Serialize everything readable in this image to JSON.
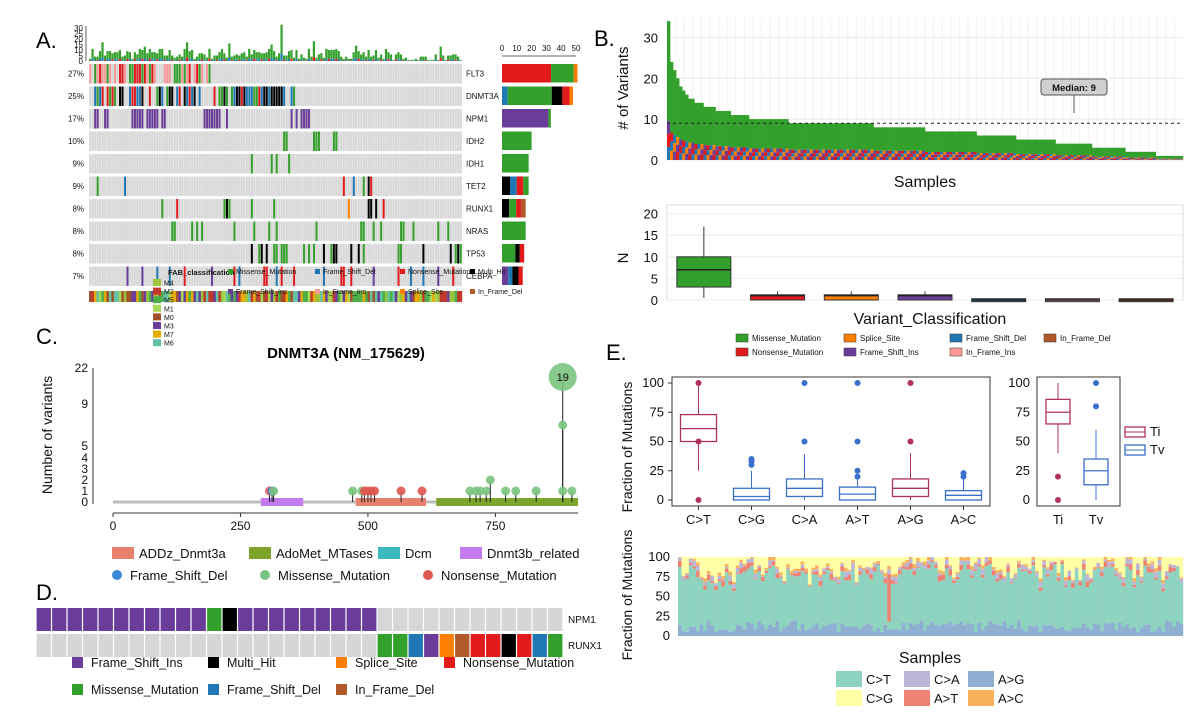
{
  "panel_labels": {
    "a": "A.",
    "b": "B.",
    "c": "C.",
    "d": "D.",
    "e": "E."
  },
  "colors": {
    "Missense_Mutation": "#33A02C",
    "Frame_Shift_Del": "#1F78B4",
    "Nonsense_Mutation": "#E31A1C",
    "Multi_Hit": "#000000",
    "Frame_Shift_Ins": "#6A3D9A",
    "In_Frame_Ins": "#FB9A99",
    "Splice_Site": "#FF7F00",
    "In_Frame_Del": "#B15928",
    "ADDz_Dnmt3a": "#E8806E",
    "AdoMet_MTases": "#7EA52B",
    "Dcm": "#3CB8BE",
    "Dnmt3b_related": "#C27CF0",
    "C>T": "#8ED2C0",
    "C>G": "#FFFFA8",
    "C>A": "#BDB6D8",
    "A>T": "#EE8373",
    "A>G": "#8EAFD2",
    "A>C": "#F8B25C",
    "Ti": "#B03060",
    "Tv": "#3A70CC"
  },
  "panelA": {
    "genes": [
      "FLT3",
      "DNMT3A",
      "NPM1",
      "IDH2",
      "IDH1",
      "TET2",
      "RUNX1",
      "NRAS",
      "TP53",
      "CEBPA"
    ],
    "percents": [
      "27%",
      "25%",
      "17%",
      "10%",
      "9%",
      "9%",
      "8%",
      "8%",
      "8%",
      "7%"
    ],
    "top_axis_ticks": [
      "0",
      "5",
      "10",
      "15",
      "20",
      "25",
      "30"
    ],
    "side_axis_ticks": [
      "0",
      "10",
      "20",
      "30",
      "40",
      "50"
    ],
    "gene_counts": [
      51,
      48,
      33,
      20,
      18,
      18,
      16,
      16,
      15,
      14
    ],
    "legend_title": "FAB_classification",
    "fab_classes": [
      {
        "name": "M4",
        "color": "#9BC53D"
      },
      {
        "name": "M2",
        "color": "#C0392B"
      },
      {
        "name": "M5",
        "color": "#4DAF4A"
      },
      {
        "name": "M1",
        "color": "#A6D854"
      },
      {
        "name": "M0",
        "color": "#A0522D"
      },
      {
        "name": "M3",
        "color": "#6A3D9A"
      },
      {
        "name": "M7",
        "color": "#E6AB02"
      },
      {
        "name": "M6",
        "color": "#66C2A5"
      }
    ],
    "legend_items": [
      "Missense_Mutation",
      "Frame_Shift_Del",
      "Nonsense_Mutation",
      "Multi_Hit",
      "Frame_Shift_Ins",
      "In_Frame_Ins",
      "Splice_Site",
      "In_Frame_Del"
    ]
  },
  "panelB": {
    "ylabel_top": "# of Variants",
    "xlabel_top": "Samples",
    "yticks_top": [
      "0",
      "10",
      "20",
      "30"
    ],
    "median_label": "Median: 9",
    "ylabel_bottom": "N",
    "xlabel_bottom": "Variant_Classification",
    "yticks_bottom": [
      "0",
      "5",
      "10",
      "15",
      "20"
    ],
    "legend_items": [
      "Missense_Mutation",
      "Splice_Site",
      "Frame_Shift_Del",
      "In_Frame_Del",
      "Nonsense_Mutation",
      "Frame_Shift_Ins",
      "In_Frame_Ins"
    ]
  },
  "panelC": {
    "title": "DNMT3A (NM_175629)",
    "ylabel": "Number of variants",
    "yticks": [
      "0",
      "1",
      "2",
      "3",
      "4",
      "5",
      "9",
      "22"
    ],
    "xticks": [
      "0",
      "250",
      "500",
      "750"
    ],
    "hotspot_label": "19",
    "domain_legend": [
      "ADDz_Dnmt3a",
      "AdoMet_MTases",
      "Dcm",
      "Dnmt3b_related"
    ],
    "mutation_legend": [
      "Frame_Shift_Del",
      "Missense_Mutation",
      "Nonsense_Mutation"
    ]
  },
  "panelD": {
    "genes": [
      "NPM1",
      "RUNX1"
    ],
    "legend_items": [
      "Frame_Shift_Ins",
      "Multi_Hit",
      "Splice_Site",
      "Nonsense_Mutation",
      "Missense_Mutation",
      "Frame_Shift_Del",
      "In_Frame_Del"
    ]
  },
  "panelE": {
    "ylabel": "Fraction of Mutations",
    "yticks": [
      "0",
      "25",
      "50",
      "75",
      "100"
    ],
    "categories": [
      "C>T",
      "C>G",
      "C>A",
      "A>T",
      "A>G",
      "A>C"
    ],
    "titv_categories": [
      "Ti",
      "Tv"
    ],
    "titv_legend": [
      "Ti",
      "Tv"
    ],
    "bottom_ylabel": "Fraction of Mutations",
    "bottom_xlabel": "Samples",
    "bottom_legend": [
      "C>T",
      "C>A",
      "A>G",
      "C>G",
      "A>T",
      "A>C"
    ]
  },
  "chart_data": [
    {
      "type": "bar",
      "panel": "A",
      "title": "",
      "series_name": "Gene mutation counts (side bars)",
      "categories": [
        "FLT3",
        "DNMT3A",
        "NPM1",
        "IDH2",
        "IDH1",
        "TET2",
        "RUNX1",
        "NRAS",
        "TP53",
        "CEBPA"
      ],
      "values": [
        51,
        48,
        33,
        20,
        18,
        18,
        16,
        16,
        15,
        14
      ],
      "percent_labels": [
        "27%",
        "25%",
        "17%",
        "10%",
        "9%",
        "9%",
        "8%",
        "8%",
        "8%",
        "7%"
      ],
      "xlim": [
        0,
        50
      ]
    },
    {
      "type": "bar",
      "panel": "B-top",
      "xlabel": "Samples",
      "ylabel": "# of Variants",
      "ylim": [
        0,
        35
      ],
      "median": 9,
      "values": [
        34,
        24,
        22,
        20,
        18,
        17,
        16,
        15,
        15,
        14,
        14,
        14,
        13,
        13,
        13,
        13,
        12,
        12,
        12,
        12,
        12,
        11,
        11,
        11,
        11,
        11,
        11,
        10,
        10,
        10,
        10,
        10,
        10,
        10,
        10,
        10,
        10,
        10,
        10,
        10,
        9,
        9,
        9,
        9,
        9,
        9,
        9,
        9,
        9,
        9,
        9,
        9,
        9,
        9,
        9,
        9,
        9,
        9,
        9,
        9,
        9,
        9,
        9,
        9,
        9,
        9,
        9,
        9,
        8,
        8,
        8,
        8,
        8,
        8,
        8,
        8,
        8,
        8,
        8,
        8,
        8,
        8,
        8,
        8,
        8,
        7,
        7,
        7,
        7,
        7,
        7,
        7,
        7,
        7,
        7,
        7,
        7,
        7,
        7,
        7,
        7,
        7,
        6,
        6,
        6,
        6,
        6,
        6,
        6,
        6,
        6,
        6,
        6,
        6,
        6,
        5,
        5,
        5,
        5,
        5,
        5,
        5,
        5,
        5,
        5,
        5,
        5,
        5,
        4,
        4,
        4,
        4,
        4,
        4,
        4,
        4,
        4,
        4,
        4,
        4,
        3,
        3,
        3,
        3,
        3,
        3,
        3,
        3,
        3,
        3,
        3,
        2,
        2,
        2,
        2,
        2,
        2,
        2,
        2,
        2,
        2,
        1,
        1,
        1,
        1,
        1,
        1,
        1,
        1,
        1
      ]
    },
    {
      "type": "box",
      "panel": "B-bottom",
      "xlabel": "Variant_Classification",
      "ylabel": "N",
      "ylim": [
        0,
        22
      ],
      "categories": [
        "Missense_Mutation",
        "Nonsense_Mutation",
        "Splice_Site",
        "Frame_Shift_Ins",
        "Frame_Shift_Del",
        "In_Frame_Ins",
        "In_Frame_Del"
      ],
      "boxes": [
        {
          "q1": 3,
          "median": 7,
          "q3": 10,
          "min": 0.5,
          "max": 17
        },
        {
          "q1": 0,
          "median": 1,
          "q3": 1.2,
          "min": 0,
          "max": 2
        },
        {
          "q1": 0,
          "median": 1,
          "q3": 1.2,
          "min": 0,
          "max": 2
        },
        {
          "q1": 0,
          "median": 1,
          "q3": 1.2,
          "min": 0,
          "max": 2
        },
        {
          "q1": 0,
          "median": 0,
          "q3": 0.3,
          "min": 0,
          "max": 0.3
        },
        {
          "q1": 0,
          "median": 0,
          "q3": 0.3,
          "min": 0,
          "max": 0.3
        },
        {
          "q1": 0,
          "median": 0,
          "q3": 0.3,
          "min": 0,
          "max": 0.3
        }
      ]
    },
    {
      "type": "scatter",
      "panel": "C",
      "title": "DNMT3A (NM_175629)",
      "xlabel": "",
      "ylabel": "Number of variants",
      "xlim": [
        0,
        912
      ],
      "lollipops": [
        {
          "x": 307,
          "y": 1,
          "class": "Nonsense_Mutation"
        },
        {
          "x": 312,
          "y": 1,
          "class": "Frame_Shift_Del"
        },
        {
          "x": 315,
          "y": 1,
          "class": "Missense_Mutation"
        },
        {
          "x": 470,
          "y": 1,
          "class": "Missense_Mutation"
        },
        {
          "x": 488,
          "y": 1,
          "class": "Missense_Mutation"
        },
        {
          "x": 493,
          "y": 1,
          "class": "Nonsense_Mutation"
        },
        {
          "x": 500,
          "y": 1,
          "class": "Nonsense_Mutation"
        },
        {
          "x": 506,
          "y": 1,
          "class": "Nonsense_Mutation"
        },
        {
          "x": 513,
          "y": 1,
          "class": "Nonsense_Mutation"
        },
        {
          "x": 565,
          "y": 1,
          "class": "Nonsense_Mutation"
        },
        {
          "x": 606,
          "y": 1,
          "class": "Nonsense_Mutation"
        },
        {
          "x": 700,
          "y": 1,
          "class": "Missense_Mutation"
        },
        {
          "x": 712,
          "y": 1,
          "class": "Missense_Mutation"
        },
        {
          "x": 720,
          "y": 1,
          "class": "Missense_Mutation"
        },
        {
          "x": 732,
          "y": 1,
          "class": "Missense_Mutation"
        },
        {
          "x": 740,
          "y": 2,
          "class": "Missense_Mutation"
        },
        {
          "x": 770,
          "y": 1,
          "class": "Missense_Mutation"
        },
        {
          "x": 790,
          "y": 1,
          "class": "Missense_Mutation"
        },
        {
          "x": 830,
          "y": 1,
          "class": "Missense_Mutation"
        },
        {
          "x": 882,
          "y": 19,
          "class": "Missense_Mutation"
        },
        {
          "x": 882,
          "y": 7,
          "class": "Missense_Mutation"
        },
        {
          "x": 882,
          "y": 1,
          "class": "Missense_Mutation"
        },
        {
          "x": 900,
          "y": 1,
          "class": "Missense_Mutation"
        }
      ]
    },
    {
      "type": "box",
      "panel": "E-titv",
      "ylabel": "Fraction of Mutations",
      "ylim": [
        0,
        100
      ],
      "categories": [
        "C>T",
        "C>G",
        "C>A",
        "A>T",
        "A>G",
        "A>C"
      ],
      "boxes": [
        {
          "q1": 50,
          "median": 61,
          "q3": 73,
          "min": 25,
          "max": 100
        },
        {
          "q1": 0,
          "median": 3,
          "q3": 10,
          "min": 0,
          "max": 25
        },
        {
          "q1": 3,
          "median": 10,
          "q3": 18,
          "min": 0,
          "max": 39
        },
        {
          "q1": 0,
          "median": 5,
          "q3": 11,
          "min": 0,
          "max": 22
        },
        {
          "q1": 3,
          "median": 10,
          "q3": 18,
          "min": 0,
          "max": 40
        },
        {
          "q1": 0,
          "median": 4,
          "q3": 8,
          "min": 0,
          "max": 18
        }
      ]
    },
    {
      "type": "box",
      "panel": "E-titv-summary",
      "ylim": [
        0,
        100
      ],
      "categories": [
        "Ti",
        "Tv"
      ],
      "boxes": [
        {
          "q1": 65,
          "median": 75,
          "q3": 86,
          "min": 40,
          "max": 100
        },
        {
          "q1": 13,
          "median": 25,
          "q3": 35,
          "min": 0,
          "max": 60
        }
      ]
    }
  ]
}
